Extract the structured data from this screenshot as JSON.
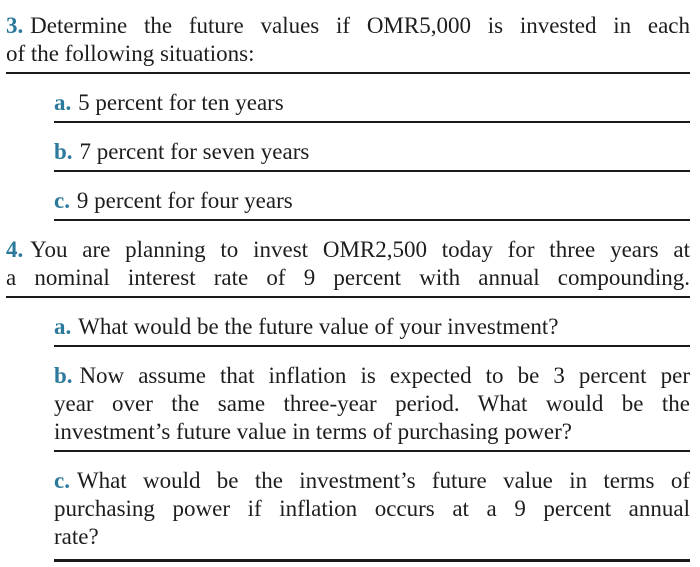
{
  "colors": {
    "accent": "#2b7a9c",
    "text": "#1f1c1d",
    "rule": "#1b191a"
  },
  "questions": [
    {
      "number": "3.",
      "lines": [
        "Determine the future values if OMR5,000 is invested in each",
        "of the following situations:"
      ],
      "sub_items": [
        {
          "label": "a.",
          "lines": [
            "5 percent for ten years"
          ]
        },
        {
          "label": "b.",
          "lines": [
            "7 percent for seven years"
          ]
        },
        {
          "label": "c.",
          "lines": [
            "9 percent for four years"
          ]
        }
      ]
    },
    {
      "number": "4.",
      "lines": [
        "You are planning to invest OMR2,500 today for three years at",
        "a nominal interest rate of 9 percent with annual compounding."
      ],
      "sub_items": [
        {
          "label": "a.",
          "lines": [
            "What would be the future value of your investment?"
          ]
        },
        {
          "label": "b.",
          "lines": [
            "Now assume that inflation is expected to be 3 percent per",
            "year over the same three-year period. What would be the",
            "investment’s future value in terms of purchasing power?"
          ]
        },
        {
          "label": "c.",
          "lines": [
            "What would be the investment’s future value in terms of",
            "purchasing power if inflation occurs at a 9 percent annual",
            "rate?"
          ]
        }
      ]
    }
  ]
}
